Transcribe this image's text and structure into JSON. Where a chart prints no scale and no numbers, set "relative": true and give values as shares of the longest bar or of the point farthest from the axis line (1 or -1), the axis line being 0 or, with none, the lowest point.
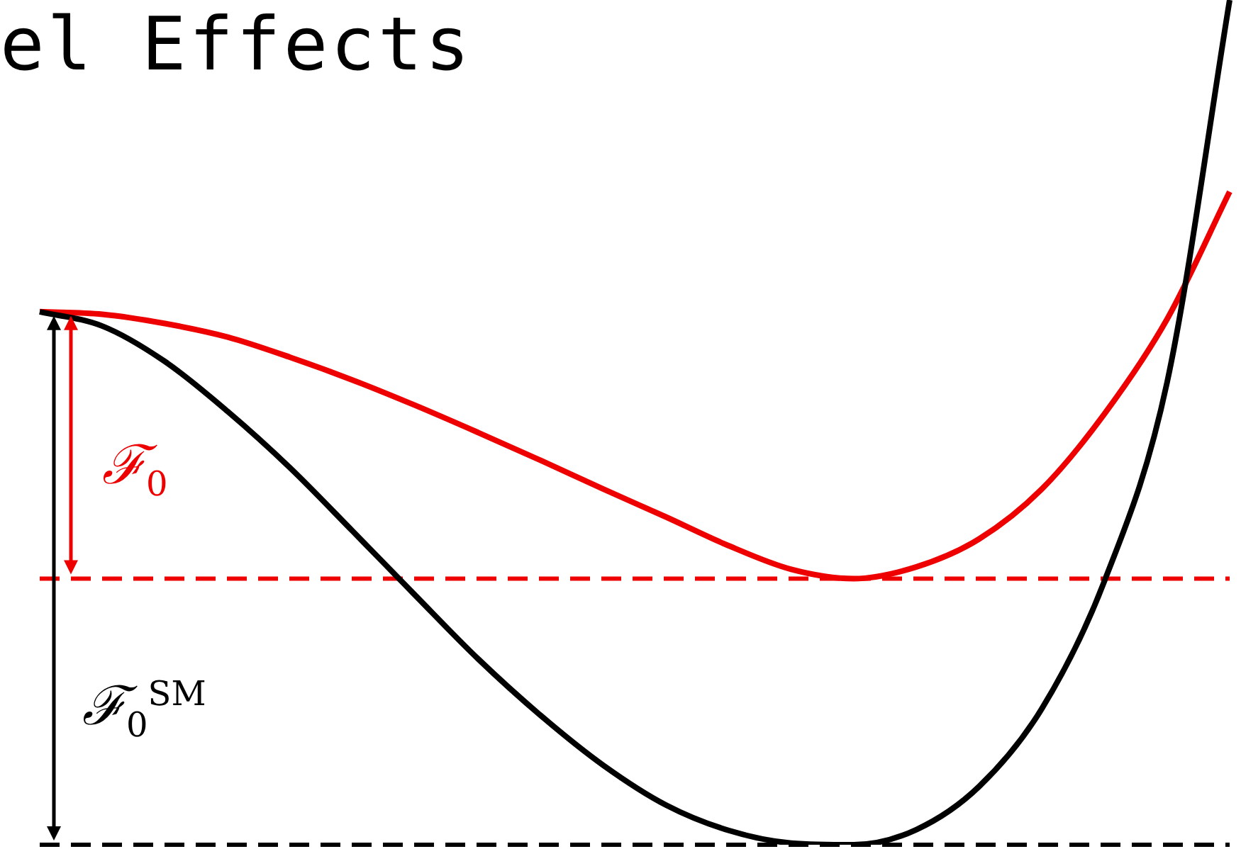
{
  "chart_data": {
    "type": "line",
    "title": "el Effects",
    "relative": true,
    "categories": [
      null,
      null,
      null,
      null,
      null,
      null,
      null,
      null,
      null,
      null,
      null,
      null,
      null,
      null,
      null,
      null,
      null,
      null,
      null,
      null
    ],
    "series": [
      {
        "color": "#000000",
        "values": [
          0.631,
          0.614,
          0.572,
          0.513,
          0.446,
          0.371,
          0.295,
          0.22,
          0.153,
          0.094,
          0.047,
          0.017,
          0.002,
          0,
          0.018,
          0.069,
          0.161,
          0.312,
          0.547,
          1
        ]
      },
      {
        "color": "#ee0000",
        "values": [
          0.631,
          0.628,
          0.617,
          0.601,
          0.577,
          0.55,
          0.52,
          0.488,
          0.455,
          0.421,
          0.388,
          0.354,
          0.326,
          0.315,
          0.329,
          0.362,
          0.421,
          0.51,
          0.622,
          0.773
        ]
      }
    ],
    "ref_lines": [
      {
        "axis": "y",
        "value": 0.315,
        "color": "#ee0000",
        "line_style": "dashed"
      },
      {
        "axis": "y",
        "value": 0,
        "color": "#000000",
        "line_style": "dashed"
      }
    ],
    "annotations": [
      "ℱ$_{0}$",
      "ℱ$_{0}$$^{SM}$"
    ],
    "marker": "none",
    "line_style": "solid",
    "legend": false
  }
}
